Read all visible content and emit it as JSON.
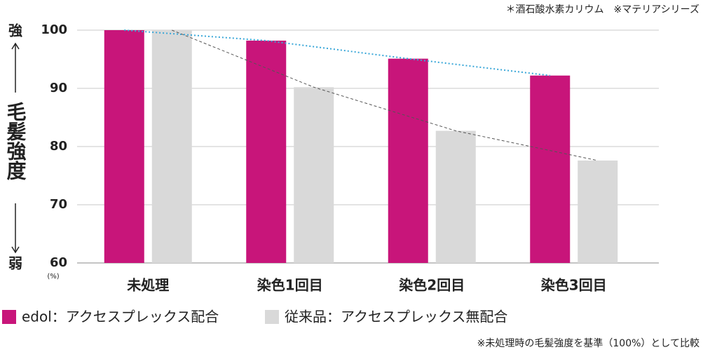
{
  "chart_data": {
    "type": "bar",
    "note": "＊酒石酸水素カリウム　※マテリアシリーズ",
    "y_axis_top_label": "強",
    "y_axis_label": "毛髪強度",
    "y_axis_bottom_label": "弱",
    "y_unit": "(%)",
    "categories": [
      "未処理",
      "染色1回目",
      "染色2回目",
      "染色3回目"
    ],
    "series": [
      {
        "name": "edol：アクセスプレックス配合",
        "color": "#c8157a",
        "values": [
          100,
          98.2,
          95.1,
          92.2
        ]
      },
      {
        "name": "従来品：アクセスプレックス無配合",
        "color": "#d9d9d9",
        "values": [
          100,
          90.2,
          82.7,
          77.6
        ]
      }
    ],
    "trend_colors": [
      "#3aa7d8",
      "#555555"
    ],
    "ylim": [
      60,
      100
    ],
    "yticks": [
      60,
      70,
      80,
      90,
      100
    ],
    "grid": true,
    "footnote": "※未処理時の毛髪強度を基準（100%）として比較"
  }
}
